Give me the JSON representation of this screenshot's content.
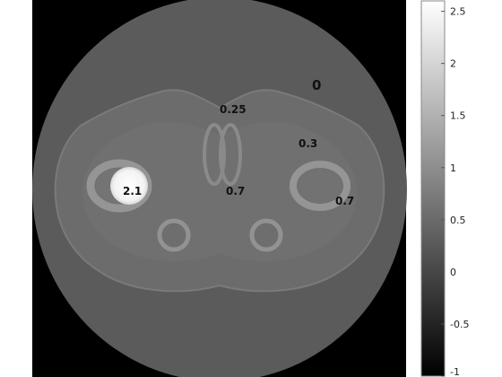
{
  "annotations": [
    {
      "text": "0"
    },
    {
      "text": "0.25"
    },
    {
      "text": "0.3"
    },
    {
      "text": "2.1"
    },
    {
      "text": "0.7"
    },
    {
      "text": "0.7"
    }
  ],
  "colorbar": {
    "min": -1,
    "max": 2.6,
    "ticks": [
      "2.5",
      "2",
      "1.5",
      "1",
      "0.5",
      "0",
      "-0.5",
      "-1"
    ],
    "colormap": "gray"
  },
  "colors": {
    "frame": "#000000",
    "outer_disk": "#5a5a5a",
    "body": "#6a6a6a",
    "fat_ring": "#727272",
    "bone": "#8f8f8f",
    "hot_insert": "#f5f5f5"
  }
}
